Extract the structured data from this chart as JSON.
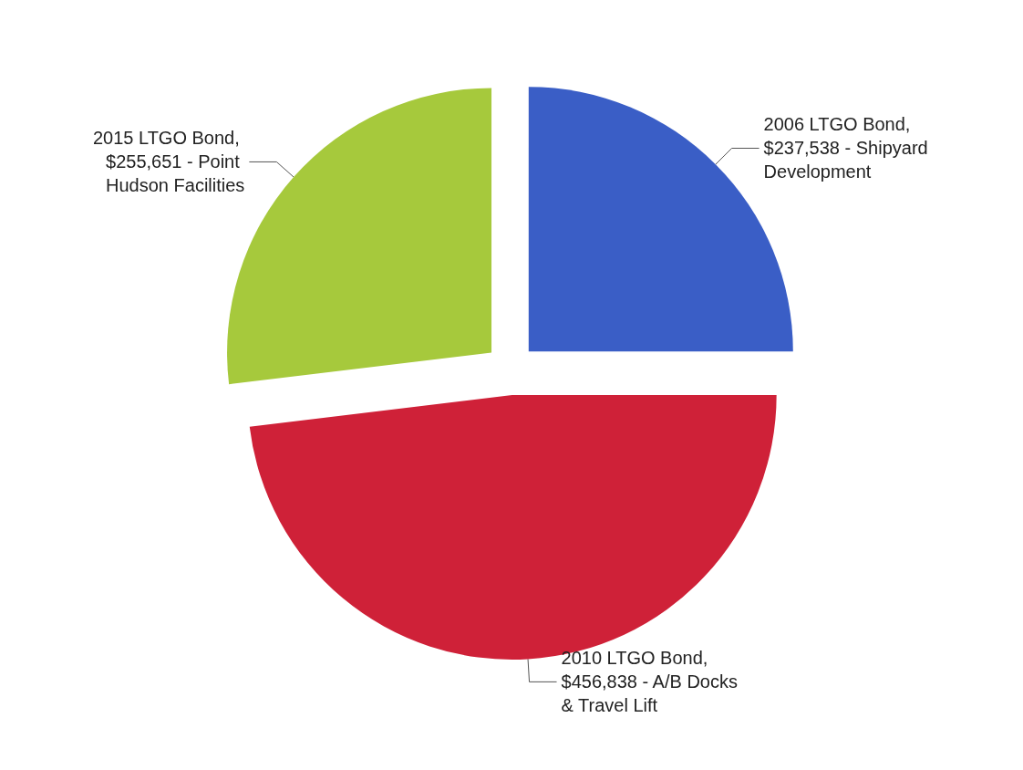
{
  "chart_data": {
    "type": "pie",
    "categories": [
      "2006 LTGO Bond, $237,538 - Shipyard Development",
      "2010 LTGO Bond, $456,838 - A/B Docks & Travel Lift",
      "2015 LTGO Bond, $255,651 - Point Hudson Facilities"
    ],
    "values": [
      237538,
      456838,
      255651
    ],
    "colors": [
      "#3a5ec6",
      "#cf2138",
      "#a6c93c"
    ],
    "legend": false
  }
}
